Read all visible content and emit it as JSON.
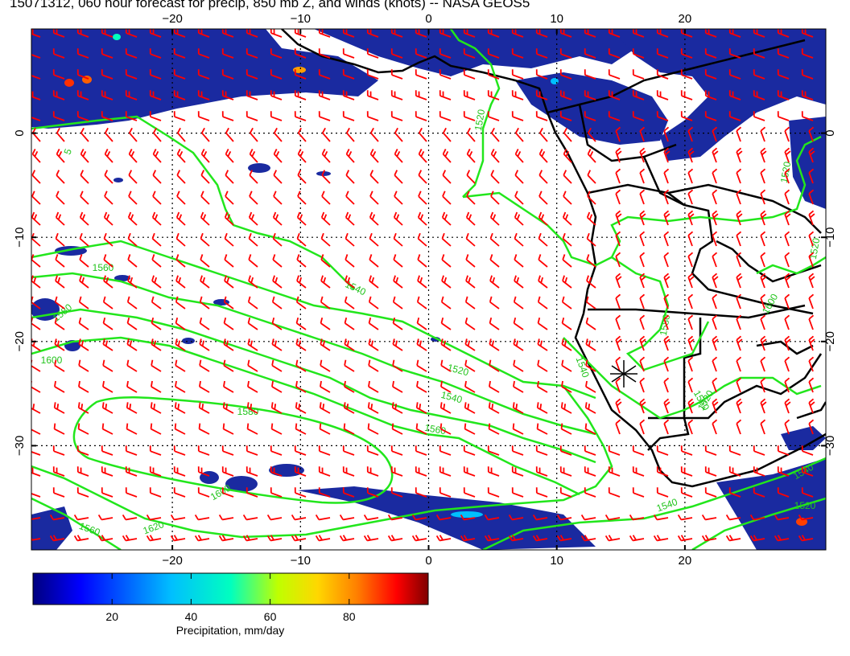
{
  "title": "15071312, 060 hour forecast for precip, 850 mb Z, and winds (knots) -- NASA GEOS5",
  "map": {
    "lon_range": [
      -31,
      31
    ],
    "lat_range": [
      10,
      -40
    ],
    "lon_ticks": [
      -20,
      -10,
      0,
      10,
      20
    ],
    "lat_ticks": [
      0,
      -10,
      -20,
      -30
    ],
    "lon_tick_labels": [
      "−20",
      "−10",
      "0",
      "10",
      "20"
    ],
    "lat_tick_labels": [
      "0",
      "−10",
      "−20",
      "−30"
    ],
    "grid": true,
    "grid_style": "dotted",
    "colors": {
      "contour": "#22e61c",
      "wind_barb": "#ff0000",
      "coastline": "#000000",
      "precip_low": "#0d1a8c",
      "precip_high": "#7a0000"
    }
  },
  "contours": {
    "field": "850 mb geopotential height",
    "labels": [
      "1520",
      "1520",
      "1540",
      "1560",
      "1580",
      "1600",
      "1520",
      "1540",
      "1560",
      "1580",
      "1600",
      "1620",
      "1540",
      "1560",
      "1580",
      "1600",
      "1520",
      "1540",
      "1520",
      "1520",
      "1540",
      "1560",
      "5"
    ]
  },
  "colorbar": {
    "label": "Precipitation, mm/day",
    "ticks": [
      20,
      40,
      60,
      80
    ],
    "range": [
      0,
      100
    ],
    "colormap": [
      "#00007f",
      "#0000ff",
      "#00bfff",
      "#00ffbf",
      "#bfff00",
      "#ffd700",
      "#ff7f00",
      "#ff0000",
      "#7f0000"
    ]
  }
}
